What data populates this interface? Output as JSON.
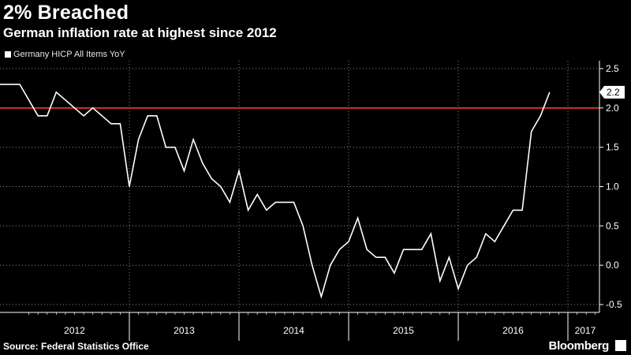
{
  "header": {
    "title": "2% Breached",
    "subtitle": "German inflation rate at highest since 2012"
  },
  "footer": {
    "source": "Source: Federal Statistics Office",
    "brand": "Bloomberg"
  },
  "chart_data": {
    "type": "line",
    "title": "2% Breached",
    "subtitle": "German inflation rate at highest since 2012",
    "legend": "top-left",
    "grid": true,
    "ylim": [
      -0.6,
      2.6
    ],
    "y_ticks": [
      "2.5",
      "2.0",
      "1.5",
      "1.0",
      "0.5",
      "0.0",
      "-0.5"
    ],
    "x_year_labels": [
      "2012",
      "2013",
      "2014",
      "2015",
      "2016",
      "2017"
    ],
    "x_start": "2012-01",
    "x_end": "2017-01",
    "series": [
      {
        "name": "Germany HICP All Items YoY",
        "color": "#ffffff",
        "last_value_label": "2.2",
        "points": [
          {
            "date": "2011-12",
            "value": 2.3
          },
          {
            "date": "2012-01",
            "value": 2.3
          },
          {
            "date": "2012-02",
            "value": 2.1
          },
          {
            "date": "2012-03",
            "value": 1.9
          },
          {
            "date": "2012-04",
            "value": 1.9
          },
          {
            "date": "2012-05",
            "value": 2.2
          },
          {
            "date": "2012-06",
            "value": 2.1
          },
          {
            "date": "2012-07",
            "value": 2.0
          },
          {
            "date": "2012-08",
            "value": 1.9
          },
          {
            "date": "2012-09",
            "value": 2.0
          },
          {
            "date": "2012-10",
            "value": 1.9
          },
          {
            "date": "2012-11",
            "value": 1.8
          },
          {
            "date": "2012-12",
            "value": 1.8
          },
          {
            "date": "2013-01",
            "value": 1.0
          },
          {
            "date": "2013-02",
            "value": 1.6
          },
          {
            "date": "2013-03",
            "value": 1.9
          },
          {
            "date": "2013-04",
            "value": 1.9
          },
          {
            "date": "2013-05",
            "value": 1.5
          },
          {
            "date": "2013-06",
            "value": 1.5
          },
          {
            "date": "2013-07",
            "value": 1.2
          },
          {
            "date": "2013-08",
            "value": 1.6
          },
          {
            "date": "2013-09",
            "value": 1.3
          },
          {
            "date": "2013-10",
            "value": 1.1
          },
          {
            "date": "2013-11",
            "value": 1.0
          },
          {
            "date": "2013-12",
            "value": 0.8
          },
          {
            "date": "2014-01",
            "value": 1.2
          },
          {
            "date": "2014-02",
            "value": 0.7
          },
          {
            "date": "2014-03",
            "value": 0.9
          },
          {
            "date": "2014-04",
            "value": 0.7
          },
          {
            "date": "2014-05",
            "value": 0.8
          },
          {
            "date": "2014-06",
            "value": 0.8
          },
          {
            "date": "2014-07",
            "value": 0.8
          },
          {
            "date": "2014-08",
            "value": 0.5
          },
          {
            "date": "2014-09",
            "value": 0.0
          },
          {
            "date": "2014-10",
            "value": -0.4
          },
          {
            "date": "2014-11",
            "value": 0.0
          },
          {
            "date": "2014-12",
            "value": 0.2
          },
          {
            "date": "2015-01",
            "value": 0.3
          },
          {
            "date": "2015-02",
            "value": 0.6
          },
          {
            "date": "2015-03",
            "value": 0.2
          },
          {
            "date": "2015-04",
            "value": 0.1
          },
          {
            "date": "2015-05",
            "value": 0.1
          },
          {
            "date": "2015-06",
            "value": -0.1
          },
          {
            "date": "2015-07",
            "value": 0.2
          },
          {
            "date": "2015-08",
            "value": 0.2
          },
          {
            "date": "2015-09",
            "value": 0.2
          },
          {
            "date": "2015-10",
            "value": 0.4
          },
          {
            "date": "2015-11",
            "value": -0.2
          },
          {
            "date": "2015-12",
            "value": 0.1
          },
          {
            "date": "2016-01",
            "value": -0.3
          },
          {
            "date": "2016-02",
            "value": 0.0
          },
          {
            "date": "2016-03",
            "value": 0.1
          },
          {
            "date": "2016-04",
            "value": 0.4
          },
          {
            "date": "2016-05",
            "value": 0.3
          },
          {
            "date": "2016-06",
            "value": 0.5
          },
          {
            "date": "2016-07",
            "value": 0.7
          },
          {
            "date": "2016-08",
            "value": 0.7
          },
          {
            "date": "2016-09",
            "value": 1.7
          },
          {
            "date": "2016-10",
            "value": 1.9
          },
          {
            "date": "2016-11",
            "value": 2.2
          }
        ]
      }
    ],
    "reference_line": {
      "value": 2.0,
      "color": "#d0312d"
    }
  }
}
